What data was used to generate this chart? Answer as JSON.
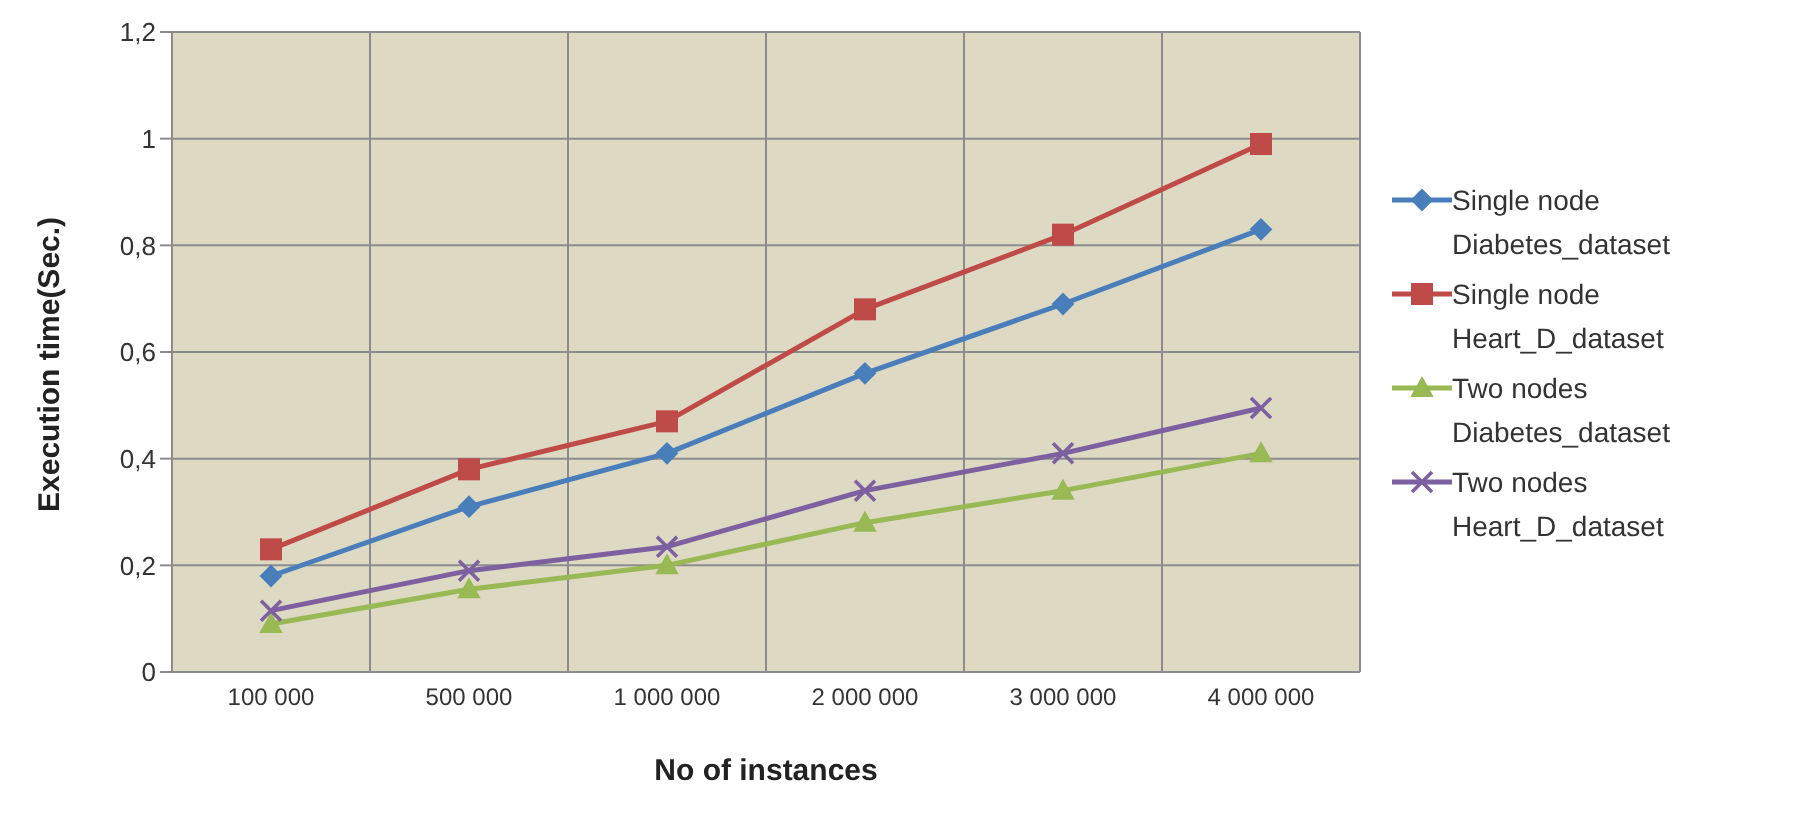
{
  "chart_data": {
    "type": "line",
    "xlabel": "No of instances",
    "ylabel": "Execution time(Sec.)",
    "categories": [
      "100 000",
      "500 000",
      "1 000 000",
      "2 000 000",
      "3 000 000",
      "4 000 000"
    ],
    "series": [
      {
        "name": "Single node Diabetes_dataset",
        "color": "#4a7ebb",
        "marker": "diamond",
        "values": [
          0.18,
          0.31,
          0.41,
          0.56,
          0.69,
          0.83
        ]
      },
      {
        "name": "Single node Heart_D_dataset",
        "color": "#be4b48",
        "marker": "square",
        "values": [
          0.23,
          0.38,
          0.47,
          0.68,
          0.82,
          0.99
        ]
      },
      {
        "name": "Two nodes Diabetes_dataset",
        "color": "#98b954",
        "marker": "triangle",
        "values": [
          0.09,
          0.155,
          0.2,
          0.28,
          0.34,
          0.41
        ]
      },
      {
        "name": "Two nodes Heart_D_dataset",
        "color": "#7d60a0",
        "marker": "cross",
        "values": [
          0.115,
          0.19,
          0.235,
          0.34,
          0.41,
          0.495
        ]
      }
    ],
    "ylim": [
      0,
      1.2
    ],
    "yticks": [
      0,
      {
        "value": 0.2,
        "label": "0,2"
      },
      {
        "value": 0.4,
        "label": "0,4"
      },
      {
        "value": 0.6,
        "label": "0,6"
      },
      {
        "value": 0.8,
        "label": "0,8"
      },
      1,
      {
        "value": 1.2,
        "label": "1,2"
      }
    ],
    "grid": true,
    "legend": "right"
  }
}
